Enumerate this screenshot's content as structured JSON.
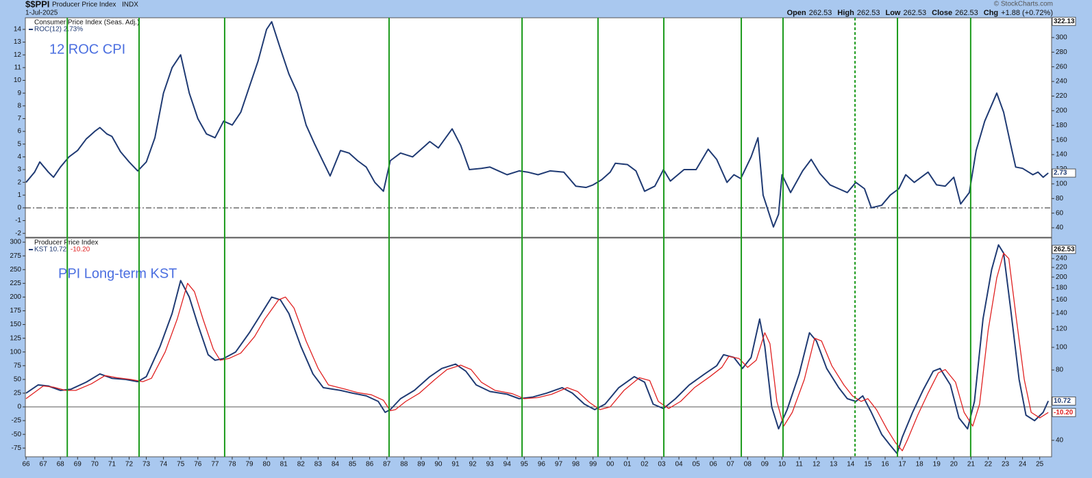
{
  "header": {
    "symbol": "$$PPI",
    "name": "Producer Price Index",
    "exchange": "INDX",
    "date": "1-Jul-2025",
    "credit": "© StockCharts.com",
    "quote": [
      {
        "label": "Open",
        "value": "262.53"
      },
      {
        "label": "High",
        "value": "262.53"
      },
      {
        "label": "Low",
        "value": "262.53"
      },
      {
        "label": "Close",
        "value": "262.53"
      },
      {
        "label": "Chg",
        "value": "+1.88 (+0.72%)"
      }
    ]
  },
  "xaxis": {
    "xlim": [
      1965.96,
      2025.69
    ],
    "xticks": [
      {
        "value": 1966,
        "label": "66"
      },
      {
        "value": 1967,
        "label": "67"
      },
      {
        "value": 1968,
        "label": "68"
      },
      {
        "value": 1969,
        "label": "69"
      },
      {
        "value": 1970,
        "label": "70"
      },
      {
        "value": 1971,
        "label": "71"
      },
      {
        "value": 1972,
        "label": "72"
      },
      {
        "value": 1973,
        "label": "73"
      },
      {
        "value": 1974,
        "label": "74"
      },
      {
        "value": 1975,
        "label": "75"
      },
      {
        "value": 1976,
        "label": "76"
      },
      {
        "value": 1977,
        "label": "77"
      },
      {
        "value": 1978,
        "label": "78"
      },
      {
        "value": 1979,
        "label": "79"
      },
      {
        "value": 1980,
        "label": "80"
      },
      {
        "value": 1981,
        "label": "81"
      },
      {
        "value": 1982,
        "label": "82"
      },
      {
        "value": 1983,
        "label": "83"
      },
      {
        "value": 1984,
        "label": "84"
      },
      {
        "value": 1985,
        "label": "85"
      },
      {
        "value": 1986,
        "label": "86"
      },
      {
        "value": 1987,
        "label": "87"
      },
      {
        "value": 1988,
        "label": "88"
      },
      {
        "value": 1989,
        "label": "89"
      },
      {
        "value": 1990,
        "label": "90"
      },
      {
        "value": 1991,
        "label": "91"
      },
      {
        "value": 1992,
        "label": "92"
      },
      {
        "value": 1993,
        "label": "93"
      },
      {
        "value": 1994,
        "label": "94"
      },
      {
        "value": 1995,
        "label": "95"
      },
      {
        "value": 1996,
        "label": "96"
      },
      {
        "value": 1997,
        "label": "97"
      },
      {
        "value": 1998,
        "label": "98"
      },
      {
        "value": 1999,
        "label": "99"
      },
      {
        "value": 2000,
        "label": "00"
      },
      {
        "value": 2001,
        "label": "01"
      },
      {
        "value": 2002,
        "label": "02"
      },
      {
        "value": 2003,
        "label": "03"
      },
      {
        "value": 2004,
        "label": "04"
      },
      {
        "value": 2005,
        "label": "05"
      },
      {
        "value": 2006,
        "label": "06"
      },
      {
        "value": 2007,
        "label": "07"
      },
      {
        "value": 2008,
        "label": "08"
      },
      {
        "value": 2009,
        "label": "09"
      },
      {
        "value": 2010,
        "label": "10"
      },
      {
        "value": 2011,
        "label": "11"
      },
      {
        "value": 2012,
        "label": "12"
      },
      {
        "value": 2013,
        "label": "13"
      },
      {
        "value": 2014,
        "label": "14"
      },
      {
        "value": 2015,
        "label": "15"
      },
      {
        "value": 2016,
        "label": "16"
      },
      {
        "value": 2017,
        "label": "17"
      },
      {
        "value": 2018,
        "label": "18"
      },
      {
        "value": 2019,
        "label": "19"
      },
      {
        "value": 2020,
        "label": "20"
      },
      {
        "value": 2021,
        "label": "21"
      },
      {
        "value": 2022,
        "label": "22"
      },
      {
        "value": 2023,
        "label": "23"
      },
      {
        "value": 2024,
        "label": "24"
      },
      {
        "value": 2025,
        "label": "25"
      }
    ]
  },
  "markers": {
    "color": "#1a9a1a",
    "lines": [
      {
        "x": 1968.4
      },
      {
        "x": 1972.58
      },
      {
        "x": 1977.56
      },
      {
        "x": 1987.13
      },
      {
        "x": 1994.87
      },
      {
        "x": 1999.29
      },
      {
        "x": 2003.12
      },
      {
        "x": 2007.63
      },
      {
        "x": 2010.06
      },
      {
        "x": 2014.25,
        "dashed": true
      },
      {
        "x": 2016.72
      },
      {
        "x": 2020.98
      }
    ]
  },
  "chart_data": [
    {
      "type": "line",
      "title": "Consumer Price Index (Seas. Adj.)",
      "annotation": "12 ROC CPI",
      "ylim": [
        -2.31,
        14.91
      ],
      "yticks": [
        -2,
        -1,
        0,
        1,
        2,
        3,
        4,
        5,
        6,
        7,
        8,
        9,
        10,
        11,
        12,
        13,
        14
      ],
      "y2lim": [
        27,
        327
      ],
      "y2log": false,
      "y2ticks": [
        40,
        60,
        80,
        100,
        120,
        140,
        160,
        180,
        200,
        220,
        240,
        260,
        280,
        300
      ],
      "zero_line": "dashdot",
      "badges": [
        {
          "value": 322.13,
          "axis": "y2",
          "color": "#111111"
        },
        {
          "value": 2.73,
          "axis": "y",
          "color": "#1f3a73"
        }
      ],
      "series": [
        {
          "name": "ROC(12) 2.73%",
          "color": "#1f3a73",
          "width": 2,
          "x": [
            1966.0,
            1966.5,
            1966.8,
            1967.3,
            1967.6,
            1968.0,
            1968.5,
            1969.0,
            1969.5,
            1970.0,
            1970.3,
            1970.7,
            1971.0,
            1971.5,
            1972.0,
            1972.5,
            1973.0,
            1973.5,
            1974.0,
            1974.5,
            1975.0,
            1975.5,
            1976.0,
            1976.5,
            1977.0,
            1977.5,
            1978.0,
            1978.5,
            1979.0,
            1979.5,
            1980.0,
            1980.3,
            1980.8,
            1981.3,
            1981.8,
            1982.3,
            1982.8,
            1983.3,
            1983.7,
            1984.3,
            1984.8,
            1985.3,
            1985.8,
            1986.3,
            1986.8,
            1987.2,
            1987.8,
            1988.5,
            1989.0,
            1989.5,
            1990.0,
            1990.8,
            1991.3,
            1991.8,
            1992.5,
            1993.0,
            1993.5,
            1994.0,
            1994.7,
            1995.2,
            1995.8,
            1996.5,
            1997.3,
            1998.0,
            1998.6,
            1999.0,
            1999.5,
            2000.0,
            2000.3,
            2001.0,
            2001.5,
            2002.0,
            2002.6,
            2003.1,
            2003.5,
            2004.3,
            2005.0,
            2005.7,
            2006.2,
            2006.8,
            2007.2,
            2007.6,
            2008.2,
            2008.6,
            2008.9,
            2009.5,
            2009.8,
            2010.0,
            2010.5,
            2011.2,
            2011.7,
            2012.2,
            2012.8,
            2013.3,
            2013.8,
            2014.3,
            2014.8,
            2015.2,
            2015.8,
            2016.3,
            2016.8,
            2017.2,
            2017.7,
            2018.5,
            2019.0,
            2019.5,
            2020.0,
            2020.4,
            2020.9,
            2021.3,
            2021.8,
            2022.5,
            2022.9,
            2023.3,
            2023.6,
            2024.0,
            2024.6,
            2024.9,
            2025.2,
            2025.5
          ],
          "values": [
            2.0,
            2.8,
            3.6,
            2.8,
            2.4,
            3.2,
            4.0,
            4.5,
            5.4,
            6.0,
            6.3,
            5.8,
            5.6,
            4.4,
            3.6,
            2.9,
            3.6,
            5.5,
            9.0,
            11.0,
            12.0,
            9.0,
            7.0,
            5.8,
            5.5,
            6.8,
            6.5,
            7.5,
            9.5,
            11.5,
            14.0,
            14.6,
            12.5,
            10.5,
            9.0,
            6.5,
            5.0,
            3.6,
            2.5,
            4.5,
            4.3,
            3.7,
            3.2,
            2.0,
            1.3,
            3.7,
            4.3,
            4.0,
            4.6,
            5.2,
            4.7,
            6.2,
            4.9,
            3.0,
            3.1,
            3.2,
            2.9,
            2.6,
            2.9,
            2.8,
            2.6,
            2.9,
            2.8,
            1.7,
            1.6,
            1.8,
            2.2,
            2.8,
            3.5,
            3.4,
            2.9,
            1.3,
            1.7,
            3.0,
            2.1,
            3.0,
            3.0,
            4.6,
            3.8,
            2.0,
            2.6,
            2.3,
            4.0,
            5.5,
            1.0,
            -1.5,
            -0.5,
            2.6,
            1.2,
            2.9,
            3.8,
            2.7,
            1.8,
            1.5,
            1.2,
            2.0,
            1.5,
            0.0,
            0.2,
            1.0,
            1.5,
            2.6,
            2.0,
            2.8,
            1.8,
            1.7,
            2.4,
            0.3,
            1.2,
            4.5,
            6.8,
            9.0,
            7.5,
            5.0,
            3.2,
            3.1,
            2.6,
            2.8,
            2.4,
            2.73
          ]
        }
      ]
    },
    {
      "type": "line",
      "title": "Producer Price Index",
      "annotation": "PPI Long-term KST",
      "ylim": [
        -90.9,
        307.6
      ],
      "yticks": [
        -75,
        -50,
        -25,
        0,
        25,
        50,
        75,
        100,
        125,
        150,
        175,
        200,
        225,
        250,
        275,
        300
      ],
      "y2lim": [
        34,
        294
      ],
      "y2log": true,
      "y2ticks": [
        40,
        80,
        100,
        120,
        140,
        160,
        180,
        200,
        220,
        240
      ],
      "zero_line": "solid",
      "badges": [
        {
          "value": 262.53,
          "axis": "y2",
          "color": "#111111"
        },
        {
          "value": 10.72,
          "axis": "y",
          "color": "#1f3a73"
        },
        {
          "value": {
            "value": -10.2,
            "label": "-10.20"
          },
          "axis": "y",
          "color": "#e02020"
        }
      ],
      "series": [
        {
          "name": "KST 10.72,",
          "color": "#1f3a73",
          "width": 2,
          "x": [
            1966.0,
            1966.7,
            1967.3,
            1968.0,
            1968.6,
            1969.5,
            1970.3,
            1971.0,
            1971.8,
            1972.5,
            1973.0,
            1973.8,
            1974.5,
            1975.0,
            1975.5,
            1976.0,
            1976.6,
            1977.0,
            1977.5,
            1978.2,
            1979.0,
            1979.6,
            1980.3,
            1980.8,
            1981.3,
            1982.0,
            1982.7,
            1983.3,
            1984.3,
            1985.0,
            1985.8,
            1986.5,
            1986.9,
            1987.2,
            1987.8,
            1988.6,
            1989.5,
            1990.2,
            1991.0,
            1991.6,
            1992.2,
            1993.0,
            1994.0,
            1994.7,
            1995.5,
            1996.3,
            1997.2,
            1997.8,
            1998.5,
            1999.1,
            1999.7,
            2000.5,
            2001.4,
            2002.0,
            2002.5,
            2003.1,
            2003.8,
            2004.6,
            2005.5,
            2006.2,
            2006.6,
            2007.2,
            2007.7,
            2008.2,
            2008.7,
            2009.0,
            2009.4,
            2009.8,
            2010.3,
            2011.0,
            2011.6,
            2012.0,
            2012.6,
            2013.3,
            2013.8,
            2014.3,
            2014.7,
            2015.2,
            2015.8,
            2016.3,
            2016.7,
            2017.0,
            2017.6,
            2018.2,
            2018.8,
            2019.2,
            2019.8,
            2020.3,
            2020.8,
            2021.2,
            2021.7,
            2022.2,
            2022.6,
            2022.9,
            2023.3,
            2023.8,
            2024.2,
            2024.7,
            2025.2,
            2025.5
          ],
          "values": [
            25,
            40,
            38,
            30,
            32,
            45,
            60,
            52,
            50,
            46,
            55,
            110,
            170,
            230,
            200,
            150,
            95,
            85,
            88,
            100,
            135,
            165,
            200,
            195,
            170,
            110,
            60,
            35,
            30,
            25,
            20,
            10,
            -10,
            -5,
            15,
            30,
            55,
            70,
            78,
            65,
            40,
            28,
            23,
            15,
            18,
            25,
            35,
            25,
            5,
            -5,
            5,
            35,
            55,
            45,
            5,
            -3,
            15,
            40,
            60,
            75,
            95,
            90,
            70,
            90,
            160,
            110,
            0,
            -40,
            -5,
            60,
            135,
            120,
            70,
            35,
            15,
            10,
            20,
            -10,
            -50,
            -70,
            -85,
            -55,
            -10,
            30,
            65,
            70,
            40,
            -20,
            -40,
            10,
            160,
            250,
            295,
            280,
            180,
            50,
            -15,
            -25,
            -10,
            10.72
          ]
        },
        {
          "name": "-10.20",
          "color": "#e02020",
          "width": 1.3,
          "x": [
            1966.0,
            1967.0,
            1967.6,
            1968.3,
            1968.9,
            1969.8,
            1970.6,
            1971.3,
            1972.1,
            1972.8,
            1973.3,
            1974.1,
            1974.8,
            1975.4,
            1975.8,
            1976.3,
            1976.9,
            1977.3,
            1977.8,
            1978.5,
            1979.3,
            1979.9,
            1980.7,
            1981.1,
            1981.6,
            1982.3,
            1983.0,
            1983.6,
            1984.6,
            1985.3,
            1986.1,
            1986.8,
            1987.2,
            1987.5,
            1988.1,
            1988.9,
            1989.8,
            1990.5,
            1991.3,
            1991.9,
            1992.5,
            1993.3,
            1994.3,
            1995.0,
            1995.8,
            1996.6,
            1997.5,
            1998.1,
            1998.8,
            1999.4,
            2000.0,
            2000.8,
            2001.7,
            2002.3,
            2002.8,
            2003.4,
            2004.1,
            2004.9,
            2005.8,
            2006.5,
            2006.9,
            2007.5,
            2008.0,
            2008.5,
            2009.0,
            2009.3,
            2009.7,
            2010.1,
            2010.6,
            2011.3,
            2011.9,
            2012.3,
            2012.9,
            2013.6,
            2014.1,
            2014.6,
            2015.0,
            2015.5,
            2016.1,
            2016.6,
            2017.0,
            2017.3,
            2017.9,
            2018.5,
            2019.1,
            2019.5,
            2020.1,
            2020.6,
            2021.1,
            2021.5,
            2022.0,
            2022.5,
            2022.9,
            2023.2,
            2023.6,
            2024.1,
            2024.5,
            2025.0,
            2025.5
          ],
          "values": [
            15,
            38,
            36,
            30,
            30,
            42,
            57,
            53,
            50,
            46,
            52,
            100,
            160,
            225,
            210,
            160,
            105,
            85,
            88,
            98,
            128,
            160,
            195,
            200,
            180,
            120,
            70,
            40,
            32,
            26,
            22,
            12,
            -7,
            -5,
            10,
            25,
            50,
            68,
            76,
            68,
            45,
            30,
            24,
            15,
            17,
            23,
            35,
            28,
            8,
            -5,
            0,
            30,
            53,
            48,
            10,
            -3,
            10,
            35,
            55,
            72,
            92,
            88,
            72,
            85,
            135,
            115,
            10,
            -35,
            -10,
            50,
            125,
            120,
            75,
            40,
            20,
            10,
            15,
            -5,
            -40,
            -65,
            -80,
            -60,
            -15,
            25,
            62,
            68,
            45,
            -10,
            -35,
            5,
            140,
            235,
            280,
            270,
            170,
            50,
            -10,
            -20,
            -10.2
          ]
        }
      ]
    }
  ]
}
